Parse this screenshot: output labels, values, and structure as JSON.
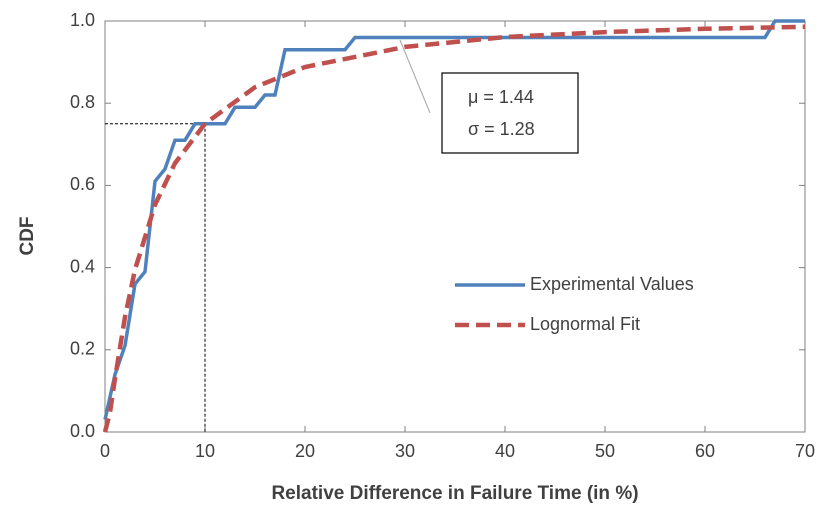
{
  "chart_data": {
    "type": "line",
    "x_label": "Relative Difference in Failure Time (in %)",
    "y_label": "CDF",
    "xlim": [
      0,
      70
    ],
    "xticks": [
      0,
      10,
      20,
      30,
      40,
      50,
      60,
      70
    ],
    "ylim": [
      0,
      1
    ],
    "yticks": [
      {
        "value": 0,
        "label": "0.0"
      },
      0.2,
      0.4,
      0.6,
      0.8,
      {
        "value": 1,
        "label": "1.0"
      }
    ],
    "legend": "center-right",
    "series": [
      {
        "name": "Experimental Values",
        "color": "#4f81bd",
        "dashed": false,
        "x": [
          0,
          1,
          2,
          3,
          4,
          5,
          6,
          7,
          8,
          9,
          12,
          13,
          15,
          16,
          17,
          18,
          24,
          25,
          66,
          67,
          70
        ],
        "values": [
          0.03,
          0.14,
          0.21,
          0.36,
          0.39,
          0.61,
          0.64,
          0.71,
          0.71,
          0.75,
          0.75,
          0.79,
          0.79,
          0.82,
          0.82,
          0.93,
          0.93,
          0.96,
          0.96,
          1.0,
          1.0
        ]
      },
      {
        "name": "Lognormal Fit",
        "color": "#c0504d",
        "dashed": true,
        "x": [
          0,
          0.5,
          1,
          2,
          3,
          5,
          7,
          10,
          15,
          20,
          30,
          40,
          50,
          60,
          70
        ],
        "values": [
          0,
          0.048,
          0.13,
          0.28,
          0.395,
          0.553,
          0.654,
          0.75,
          0.839,
          0.888,
          0.937,
          0.961,
          0.973,
          0.981,
          0.986
        ]
      }
    ],
    "reference": {
      "x": 10,
      "y": 0.75
    },
    "annotation": [
      "μ = 1.44",
      "σ = 1.28"
    ]
  }
}
